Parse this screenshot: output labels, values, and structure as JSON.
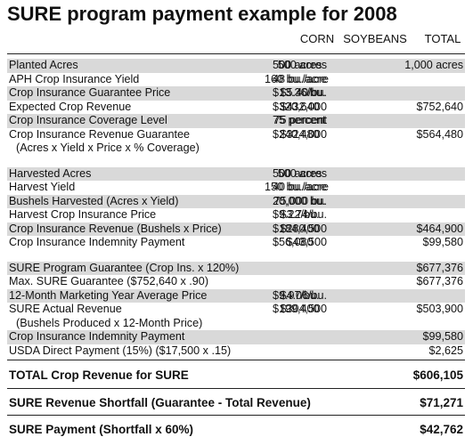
{
  "title": "SURE program payment example for 2008",
  "columns": [
    "CORN",
    "SOYBEANS",
    "TOTAL"
  ],
  "section1": [
    {
      "label": "Planted Acres",
      "corn": "500 acres",
      "soy": "500 acres",
      "total": "1,000 acres",
      "shade": true
    },
    {
      "label": "APH Crop Insurance Yield",
      "corn": "160 bu./acre",
      "soy": "48 bu./acre",
      "total": "",
      "shade": false
    },
    {
      "label": "Crop Insurance Guarantee Price",
      "corn": "$5.40/bu.",
      "soy": "$13.36/bu.",
      "total": "",
      "shade": true
    },
    {
      "label": "Expected Crop Revenue",
      "corn": "$432,000",
      "soy": "$320,640",
      "total": "$752,640",
      "shade": false
    },
    {
      "label": "Crop Insurance Coverage Level",
      "corn": "75 percent",
      "soy": "75 percent",
      "total": "",
      "shade": true
    },
    {
      "label": "Crop Insurance Revenue Guarantee",
      "corn": "$324,000",
      "soy": "$240,480",
      "total": "$564,480",
      "shade": false
    },
    {
      "label": "(Acres x Yield x Price x % Coverage)",
      "corn": "",
      "soy": "",
      "total": "",
      "shade": false,
      "indent": true
    }
  ],
  "section2": [
    {
      "label": "Harvested Acres",
      "corn": "500 acres",
      "soy": "500 acres",
      "total": "",
      "shade": true
    },
    {
      "label": "Harvest Yield",
      "corn": "150 bu./acre",
      "soy": "40 bu./acre",
      "total": "",
      "shade": false
    },
    {
      "label": "Bushels Harvested (Acres x Yield)",
      "corn": "75,000 bu.",
      "soy": "20,000 bu.",
      "total": "",
      "shade": true
    },
    {
      "label": "Harvest Crop Insurance Price",
      "corn": "$3.74/bu.",
      "soy": "$9.22/bu.",
      "total": "",
      "shade": false
    },
    {
      "label": "Crop Insurance Revenue (Bushels x Price)",
      "corn": "$280,500",
      "soy": "$184,400",
      "total": "$464,900",
      "shade": true
    },
    {
      "label": "Crop Insurance Indemnity Payment",
      "corn": "$43,500",
      "soy": "$56,080",
      "total": "$99,580",
      "shade": false
    }
  ],
  "section3": [
    {
      "label": "SURE Program Guarantee (Crop Ins. x 120%)",
      "corn": "",
      "soy": "",
      "total": "$677,376",
      "shade": true
    },
    {
      "label": "Max. SURE Guarantee ($752,640 x .90)",
      "corn": "",
      "soy": "",
      "total": "$677,376",
      "shade": false
    },
    {
      "label": "12-Month Marketing Year Average Price",
      "corn": "$4.06/bu.",
      "soy": "$9.97/bu.",
      "total": "",
      "shade": true
    },
    {
      "label": "SURE Actual Revenue",
      "corn": "$304,500",
      "soy": "$199,400",
      "total": "$503,900",
      "shade": false
    },
    {
      "label": "(Bushels Produced x 12-Month Price)",
      "corn": "",
      "soy": "",
      "total": "",
      "shade": false,
      "indent": true
    },
    {
      "label": "Crop Insurance Indemnity Payment",
      "corn": "",
      "soy": "",
      "total": "$99,580",
      "shade": true
    },
    {
      "label": "USDA Direct Payment (15%) ($17,500 x .15)",
      "corn": "",
      "soy": "",
      "total": "$2,625",
      "shade": false
    }
  ],
  "totals": [
    {
      "label": "TOTAL Crop Revenue for SURE",
      "total": "$606,105"
    },
    {
      "label": "SURE Revenue Shortfall (Guarantee - Total Revenue)",
      "total": "$71,271"
    },
    {
      "label": "SURE Payment (Shortfall x 60%)",
      "total": "$42,762"
    }
  ]
}
